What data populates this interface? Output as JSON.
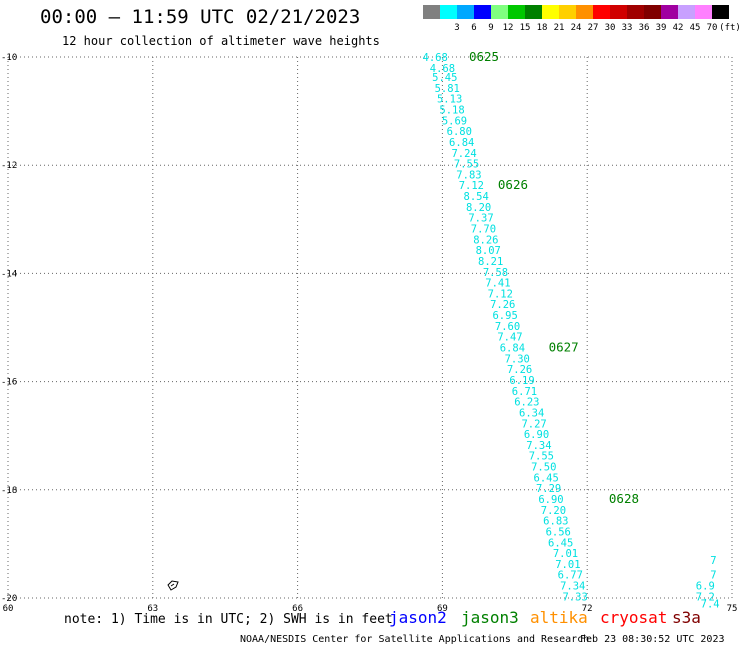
{
  "header": {
    "title": "00:00 – 11:59 UTC 02/21/2023",
    "subtitle": "12 hour collection of altimeter wave heights"
  },
  "legend": {
    "unit": "(ft)",
    "items": [
      {
        "label": "",
        "color": "#808080"
      },
      {
        "label": "3",
        "color": "#00ffff"
      },
      {
        "label": "6",
        "color": "#00a8ff"
      },
      {
        "label": "9",
        "color": "#0000ff"
      },
      {
        "label": "12",
        "color": "#80ff80"
      },
      {
        "label": "15",
        "color": "#00c800"
      },
      {
        "label": "18",
        "color": "#008000"
      },
      {
        "label": "21",
        "color": "#ffff00"
      },
      {
        "label": "24",
        "color": "#ffd000"
      },
      {
        "label": "27",
        "color": "#ff9000"
      },
      {
        "label": "30",
        "color": "#ff0000"
      },
      {
        "label": "33",
        "color": "#d00000"
      },
      {
        "label": "36",
        "color": "#a00000"
      },
      {
        "label": "39",
        "color": "#800000"
      },
      {
        "label": "42",
        "color": "#a000a0"
      },
      {
        "label": "45",
        "color": "#c8a0ff"
      },
      {
        "label": "70",
        "color": "#ff80ff"
      },
      {
        "label": "",
        "color": "#000000"
      }
    ]
  },
  "map": {
    "lon_ticks": [
      "60",
      "63",
      "66",
      "69",
      "72",
      "75"
    ],
    "lat_ticks": [
      "-10",
      "-12",
      "-14",
      "-16",
      "-18",
      "-20"
    ],
    "lon_range": [
      60,
      75
    ],
    "lat_range": [
      -20,
      -10
    ],
    "track_color": "#00e0e0",
    "time_color": "#008000",
    "track": [
      {
        "label": "4.68",
        "lon": 68.85,
        "lat": -10.0
      },
      {
        "label": "4.68",
        "lon": 69.0,
        "lat": -10.2
      },
      {
        "label": "5.45",
        "lon": 69.05,
        "lat": -10.37
      },
      {
        "label": "5.81",
        "lon": 69.1,
        "lat": -10.57
      },
      {
        "label": "5.13",
        "lon": 69.15,
        "lat": -10.77
      },
      {
        "label": "5.18",
        "lon": 69.2,
        "lat": -10.97
      },
      {
        "label": "5.69",
        "lon": 69.25,
        "lat": -11.17
      },
      {
        "label": "6.80",
        "lon": 69.35,
        "lat": -11.37
      },
      {
        "label": "6.84",
        "lon": 69.4,
        "lat": -11.57
      },
      {
        "label": "7.24",
        "lon": 69.45,
        "lat": -11.77
      },
      {
        "label": "7.55",
        "lon": 69.5,
        "lat": -11.97
      },
      {
        "label": "7.83",
        "lon": 69.55,
        "lat": -12.17
      },
      {
        "label": "7.12",
        "lon": 69.6,
        "lat": -12.37
      },
      {
        "label": "8.54",
        "lon": 69.7,
        "lat": -12.57
      },
      {
        "label": "8.20",
        "lon": 69.75,
        "lat": -12.77
      },
      {
        "label": "7.37",
        "lon": 69.8,
        "lat": -12.97
      },
      {
        "label": "7.70",
        "lon": 69.85,
        "lat": -13.17
      },
      {
        "label": "8.26",
        "lon": 69.9,
        "lat": -13.37
      },
      {
        "label": "8.07",
        "lon": 69.95,
        "lat": -13.57
      },
      {
        "label": "8.21",
        "lon": 70.0,
        "lat": -13.77
      },
      {
        "label": "7.58",
        "lon": 70.1,
        "lat": -13.97
      },
      {
        "label": "7.41",
        "lon": 70.15,
        "lat": -14.17
      },
      {
        "label": "7.12",
        "lon": 70.2,
        "lat": -14.37
      },
      {
        "label": "7.26",
        "lon": 70.25,
        "lat": -14.57
      },
      {
        "label": "6.95",
        "lon": 70.3,
        "lat": -14.77
      },
      {
        "label": "7.60",
        "lon": 70.35,
        "lat": -14.97
      },
      {
        "label": "7.47",
        "lon": 70.4,
        "lat": -15.17
      },
      {
        "label": "6.84",
        "lon": 70.45,
        "lat": -15.37
      },
      {
        "label": "7.30",
        "lon": 70.55,
        "lat": -15.57
      },
      {
        "label": "7.26",
        "lon": 70.6,
        "lat": -15.77
      },
      {
        "label": "6.19",
        "lon": 70.65,
        "lat": -15.97
      },
      {
        "label": "6.71",
        "lon": 70.7,
        "lat": -16.17
      },
      {
        "label": "6.23",
        "lon": 70.75,
        "lat": -16.37
      },
      {
        "label": "6.34",
        "lon": 70.85,
        "lat": -16.57
      },
      {
        "label": "7.27",
        "lon": 70.9,
        "lat": -16.77
      },
      {
        "label": "6.90",
        "lon": 70.95,
        "lat": -16.97
      },
      {
        "label": "7.34",
        "lon": 71.0,
        "lat": -17.17
      },
      {
        "label": "7.55",
        "lon": 71.05,
        "lat": -17.37
      },
      {
        "label": "7.50",
        "lon": 71.1,
        "lat": -17.57
      },
      {
        "label": "6.45",
        "lon": 71.15,
        "lat": -17.77
      },
      {
        "label": "7.29",
        "lon": 71.2,
        "lat": -17.97
      },
      {
        "label": "6.90",
        "lon": 71.25,
        "lat": -18.17
      },
      {
        "label": "7.20",
        "lon": 71.3,
        "lat": -18.37
      },
      {
        "label": "6.83",
        "lon": 71.35,
        "lat": -18.57
      },
      {
        "label": "6.56",
        "lon": 71.4,
        "lat": -18.77
      },
      {
        "label": "6.45",
        "lon": 71.45,
        "lat": -18.97
      },
      {
        "label": "7.01",
        "lon": 71.55,
        "lat": -19.17
      },
      {
        "label": "7.01",
        "lon": 71.6,
        "lat": -19.37
      },
      {
        "label": "6.77",
        "lon": 71.65,
        "lat": -19.57
      },
      {
        "label": "7.34",
        "lon": 71.7,
        "lat": -19.77
      },
      {
        "label": "7.33",
        "lon": 71.75,
        "lat": -19.97
      }
    ],
    "times": [
      {
        "label": "0625",
        "lon": 69.55,
        "lat": -10.0
      },
      {
        "label": "0626",
        "lon": 70.15,
        "lat": -12.37
      },
      {
        "label": "0627",
        "lon": 71.2,
        "lat": -15.37
      },
      {
        "label": "0628",
        "lon": 72.45,
        "lat": -18.17
      }
    ],
    "track2": [
      {
        "label": "7",
        "lon": 74.55,
        "lat": -19.3
      },
      {
        "label": "7",
        "lon": 74.55,
        "lat": -19.57
      },
      {
        "label": "6.9",
        "lon": 74.25,
        "lat": -19.77
      },
      {
        "label": "7.2",
        "lon": 74.25,
        "lat": -19.97
      },
      {
        "label": "7.4",
        "lon": 74.35,
        "lat": -20.1
      }
    ]
  },
  "footer": {
    "note": "note: 1) Time is in UTC; 2) SWH is in feet",
    "satellites": [
      {
        "name": "jason2",
        "color": "#0000ff"
      },
      {
        "name": "jason3",
        "color": "#008000"
      },
      {
        "name": "altika",
        "color": "#ff9000"
      },
      {
        "name": "cryosat",
        "color": "#ff0000"
      },
      {
        "name": "s3a",
        "color": "#800000"
      }
    ],
    "credit": "NOAA/NESDIS Center for Satellite Applications and Research",
    "timestamp": "Feb 23 08:30:52 UTC 2023"
  }
}
